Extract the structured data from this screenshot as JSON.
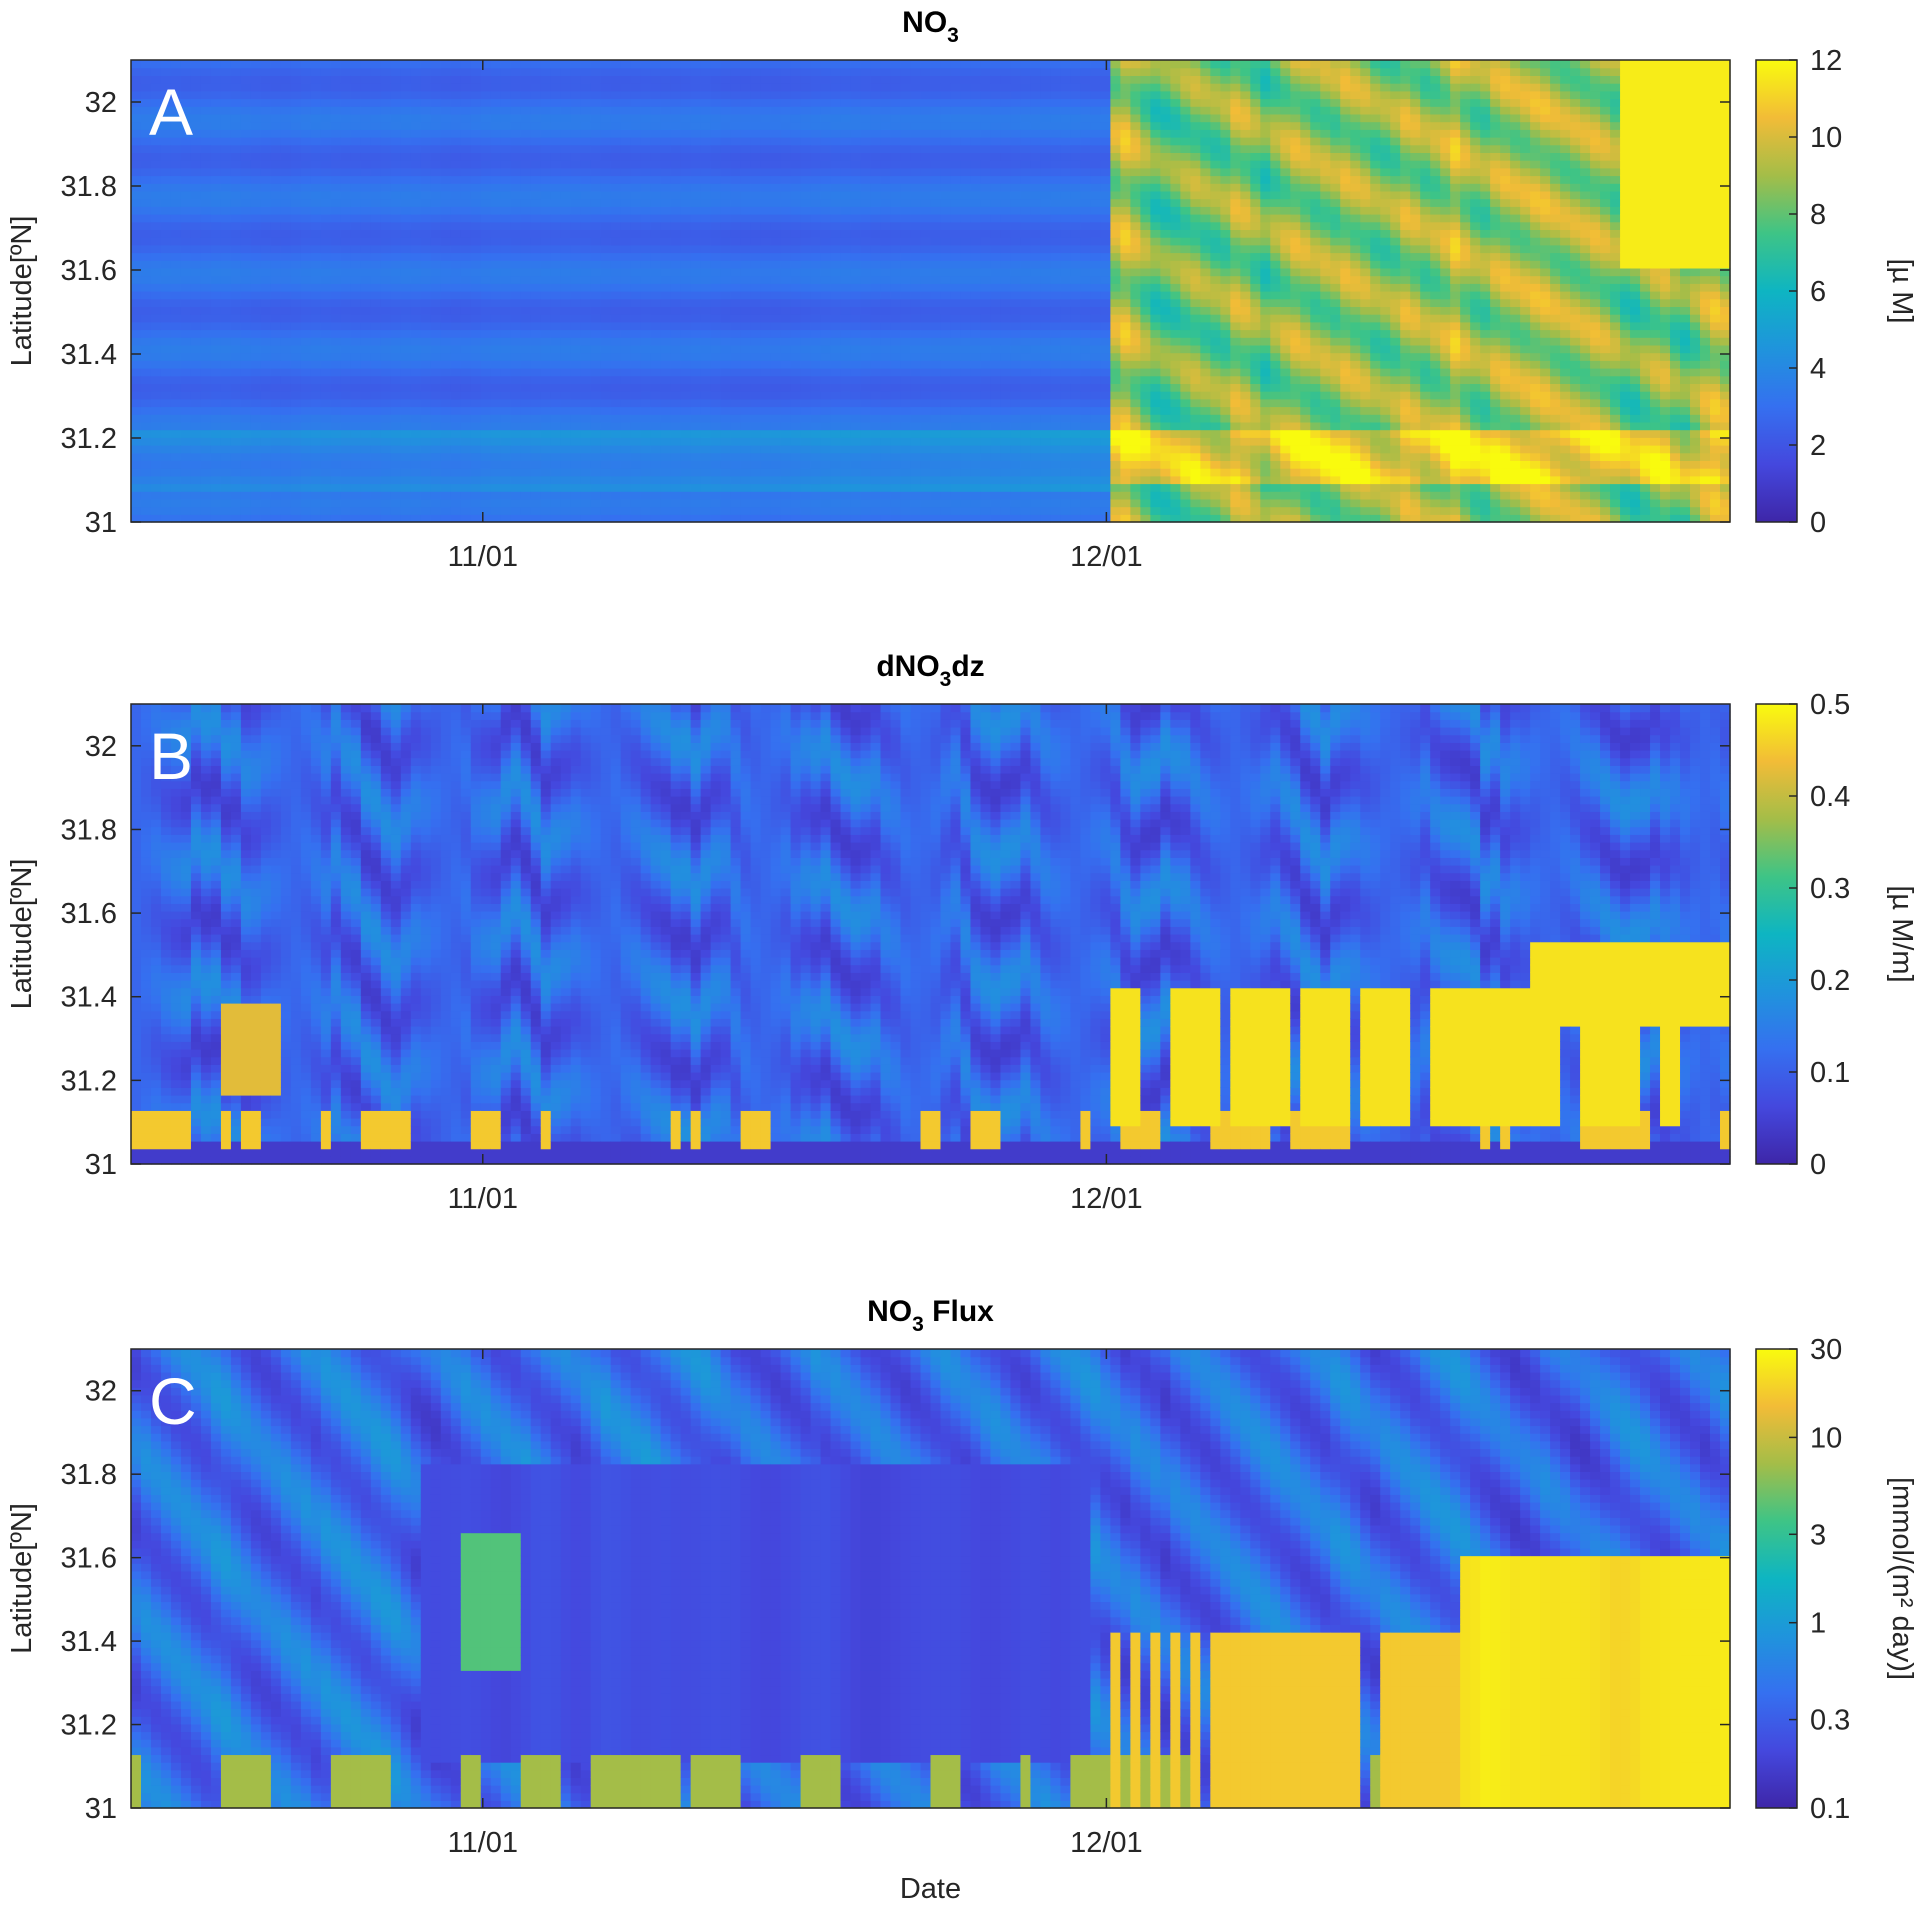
{
  "figure": {
    "xlabel": "Date",
    "x_ticks": [
      "11/01",
      "12/01"
    ],
    "y_ticks": [
      "31",
      "31.2",
      "31.4",
      "31.6",
      "31.8",
      "32"
    ]
  },
  "chart_data": [
    {
      "type": "heatmap",
      "panel_label": "A",
      "title": {
        "main": "NO",
        "sub": "3",
        "rest": ""
      },
      "ylabel": "Latitude[ºN]",
      "ylim": [
        31,
        32.1
      ],
      "x_ticks": [
        "11/01",
        "12/01"
      ],
      "colorbar": {
        "label": "[µ M]",
        "ticks": [
          "0",
          "2",
          "4",
          "6",
          "8",
          "10",
          "12"
        ],
        "range": [
          0,
          12
        ],
        "scale": "linear"
      },
      "description_values": {
        "typical_before_12_01": 3,
        "typical_after_12_01": 9,
        "max": 12
      }
    },
    {
      "type": "heatmap",
      "panel_label": "B",
      "title": {
        "main": "dNO",
        "sub": "3",
        "rest": "dz"
      },
      "ylabel": "Latitude[ºN]",
      "ylim": [
        31,
        32.1
      ],
      "x_ticks": [
        "11/01",
        "12/01"
      ],
      "colorbar": {
        "label": "[µ M/m]",
        "ticks": [
          "0",
          "0.1",
          "0.2",
          "0.3",
          "0.4",
          "0.5"
        ],
        "range": [
          0,
          0.5
        ],
        "scale": "linear"
      },
      "description_values": {
        "background": 0.1,
        "high_streaks": 0.5
      }
    },
    {
      "type": "heatmap",
      "panel_label": "C",
      "title": {
        "main": "NO",
        "sub": "3",
        "rest": " Flux"
      },
      "ylabel": "Latitude[ºN]",
      "ylim": [
        31,
        32.1
      ],
      "x_ticks": [
        "11/01",
        "12/01"
      ],
      "colorbar": {
        "label": "[mmol/(m² day)]",
        "ticks": [
          "0.1",
          "0.3",
          "1",
          "3",
          "10",
          "30"
        ],
        "range": [
          0.1,
          30
        ],
        "scale": "log"
      },
      "description_values": {
        "background": 0.2,
        "high_streaks": 30
      }
    }
  ]
}
